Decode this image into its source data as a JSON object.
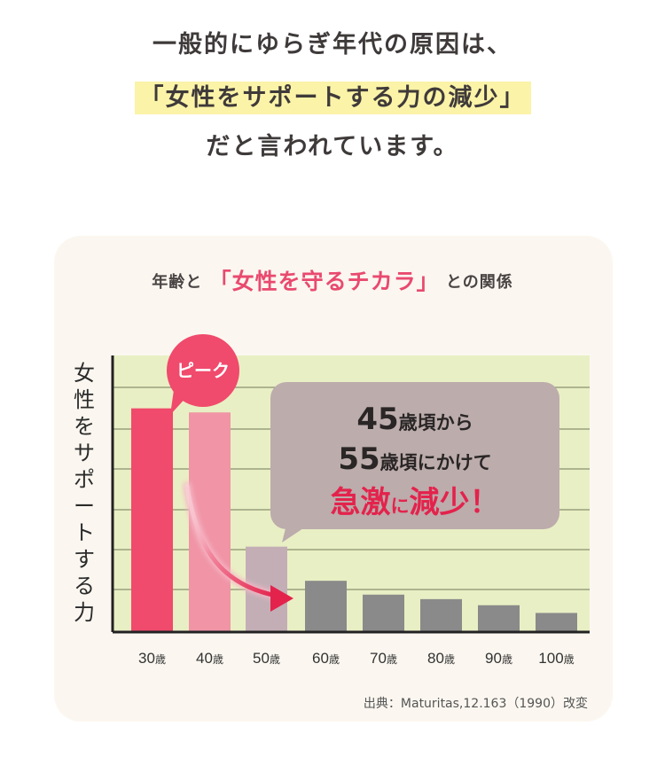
{
  "headline": {
    "line1": "一般的にゆらぎ年代の原因は、",
    "line2": "「女性をサポートする力の減少」",
    "line3": "だと言われています。"
  },
  "chart_title": {
    "prefix": "年齢と",
    "highlight": "「女性を守るチカラ」",
    "suffix": "との関係"
  },
  "ylabel_chars": [
    "女",
    "性",
    "を",
    "サ",
    "ポ",
    "ー",
    "ト",
    "す",
    "る",
    "力"
  ],
  "peak_label": "ピーク",
  "callout": {
    "line1_num": "45",
    "line1_text": "歳頃から",
    "line2_num": "55",
    "line2_text": "歳頃にかけて",
    "line3_a": "急激",
    "line3_b": "に",
    "line3_c": "減少！"
  },
  "source": "出典：Maturitas,12.163（1990）改変",
  "colors": {
    "peak_bar": "#f04a6c",
    "pink_bar": "#f094a6",
    "mauve_bar": "#c3aeb6",
    "gray_bar": "#8a8a8a",
    "plot_bg": "#e9efc4",
    "callout_bg": "#bcacac",
    "accent": "#e3234c"
  },
  "chart_data": {
    "type": "bar",
    "categories": [
      "30歳",
      "40歳",
      "50歳",
      "60歳",
      "70歳",
      "80歳",
      "90歳",
      "100歳"
    ],
    "values": [
      55,
      54,
      21,
      12.6,
      9.2,
      8.1,
      6.6,
      4.7
    ],
    "ylim": [
      0,
      68
    ],
    "grid": true,
    "xlabel": "",
    "ylabel": "女性をサポートする力"
  }
}
